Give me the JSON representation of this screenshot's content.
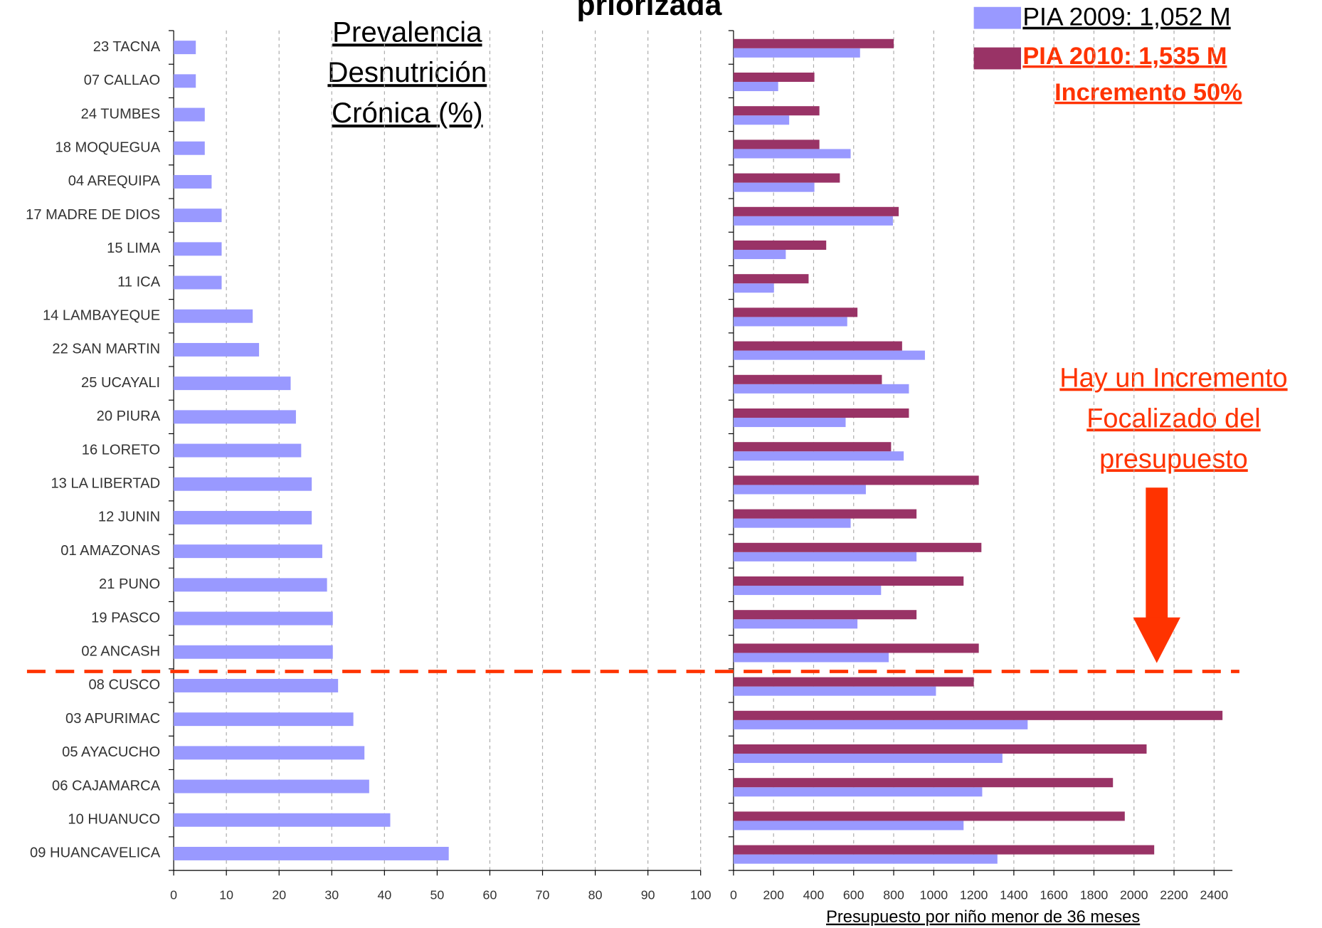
{
  "chart_data": [
    {
      "type": "bar",
      "orientation": "horizontal",
      "title": "priorizada",
      "annotation": [
        "Prevalencia",
        "Desnutrición",
        "Crónica  (%)"
      ],
      "categories": [
        "23 TACNA",
        "07 CALLAO",
        "24 TUMBES",
        "18 MOQUEGUA",
        "04 AREQUIPA",
        "17 MADRE DE DIOS",
        "15 LIMA",
        "11 ICA",
        "14 LAMBAYEQUE",
        "22 SAN MARTIN",
        "25 UCAYALI",
        "20 PIURA",
        "16 LORETO",
        "13 LA LIBERTAD",
        "12 JUNIN",
        "01 AMAZONAS",
        "21 PUNO",
        "19 PASCO",
        "02 ANCASH",
        "08 CUSCO",
        "03 APURIMAC",
        "05 AYACUCHO",
        "06 CAJAMARCA",
        "10 HUANUCO",
        "09 HUANCAVELICA"
      ],
      "values": [
        4.2,
        4.2,
        5.9,
        5.9,
        7.2,
        9.1,
        9.1,
        9.1,
        15,
        16.2,
        22.2,
        23.2,
        24.2,
        26.2,
        26.2,
        28.2,
        29.1,
        30.2,
        30.2,
        31.2,
        34.1,
        36.2,
        37.1,
        41.1,
        52.2
      ],
      "color": "#9999ff",
      "xlim": [
        0,
        100
      ],
      "xticks": [
        0,
        10,
        20,
        30,
        40,
        50,
        60,
        70,
        80,
        90,
        100
      ],
      "grid": true
    },
    {
      "type": "bar",
      "orientation": "horizontal",
      "xlabel": "Presupuesto por niño menor de 36 meses",
      "legend_note": "Incremento 50%",
      "note": [
        "Hay un Incremento",
        "Focalizado del",
        "presupuesto"
      ],
      "series": [
        {
          "name": "PIA 2009: 1,052 M",
          "color": "#9999ff",
          "values": [
            632,
            223,
            278,
            585,
            404,
            796,
            261,
            202,
            568,
            956,
            876,
            560,
            850,
            661,
            585,
            914,
            737,
            619,
            775,
            1011,
            1469,
            1343,
            1242,
            1149,
            1318
          ]
        },
        {
          "name": "PIA 2010: 1,535 M",
          "color": "#993366",
          "values": [
            800,
            404,
            429,
            429,
            531,
            825,
            463,
            375,
            619,
            842,
            741,
            876,
            787,
            1225,
            914,
            1238,
            1149,
            914,
            1225,
            1200,
            2442,
            2063,
            1895,
            1954,
            2101
          ]
        }
      ],
      "xlim": [
        0,
        2500
      ],
      "xticks": [
        0,
        200,
        400,
        600,
        800,
        1000,
        1200,
        1400,
        1600,
        1800,
        2000,
        2200,
        2400
      ],
      "grid": true,
      "legend": "top-right"
    }
  ]
}
